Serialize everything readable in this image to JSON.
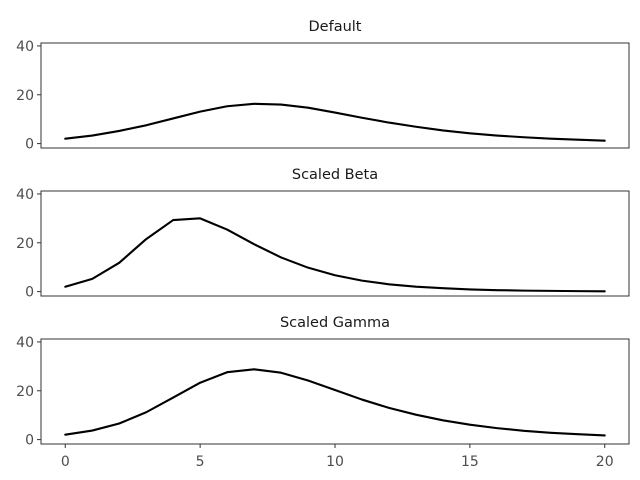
{
  "chart_data": [
    {
      "type": "line",
      "title": "Default",
      "xlabel": "",
      "ylabel": "",
      "xlim": [
        0,
        20
      ],
      "ylim": [
        0,
        40
      ],
      "y_ticks": [
        0,
        20,
        40
      ],
      "grid": false,
      "x": [
        0,
        1,
        2,
        3,
        4,
        5,
        6,
        7,
        8,
        9,
        10,
        11,
        12,
        13,
        14,
        15,
        16,
        17,
        18,
        19,
        20
      ],
      "series": [
        {
          "values": [
            2.0,
            3.3,
            5.2,
            7.5,
            10.3,
            13.1,
            15.3,
            16.3,
            16.0,
            14.7,
            12.7,
            10.6,
            8.6,
            6.9,
            5.4,
            4.2,
            3.3,
            2.6,
            2.0,
            1.6,
            1.2
          ]
        }
      ]
    },
    {
      "type": "line",
      "title": "Scaled Beta",
      "xlabel": "",
      "ylabel": "",
      "xlim": [
        0,
        20
      ],
      "ylim": [
        0,
        40
      ],
      "y_ticks": [
        0,
        20,
        40
      ],
      "grid": false,
      "x": [
        0,
        1,
        2,
        3,
        4,
        5,
        6,
        7,
        8,
        9,
        10,
        11,
        12,
        13,
        14,
        15,
        16,
        17,
        18,
        19,
        20
      ],
      "series": [
        {
          "values": [
            2.0,
            5.2,
            11.8,
            21.5,
            29.3,
            30.0,
            25.4,
            19.4,
            14.0,
            9.8,
            6.7,
            4.5,
            3.0,
            2.0,
            1.4,
            0.9,
            0.6,
            0.4,
            0.3,
            0.2,
            0.1
          ]
        }
      ]
    },
    {
      "type": "line",
      "title": "Scaled Gamma",
      "xlabel": "",
      "ylabel": "",
      "xlim": [
        0,
        20
      ],
      "ylim": [
        0,
        40
      ],
      "x_ticks": [
        0,
        5,
        10,
        15,
        20
      ],
      "y_ticks": [
        0,
        20,
        40
      ],
      "grid": false,
      "x": [
        0,
        1,
        2,
        3,
        4,
        5,
        6,
        7,
        8,
        9,
        10,
        11,
        12,
        13,
        14,
        15,
        16,
        17,
        18,
        19,
        20
      ],
      "series": [
        {
          "values": [
            2.0,
            3.7,
            6.6,
            11.2,
            17.2,
            23.3,
            27.6,
            28.8,
            27.4,
            24.2,
            20.3,
            16.4,
            13.0,
            10.2,
            7.9,
            6.1,
            4.7,
            3.6,
            2.8,
            2.2,
            1.7
          ]
        }
      ]
    }
  ],
  "style": {
    "line_color": "#000000",
    "frame_color": "#333333",
    "tick_label_color": "#4d4d4d",
    "title_color": "#1a1a1a",
    "background": "#ffffff"
  }
}
